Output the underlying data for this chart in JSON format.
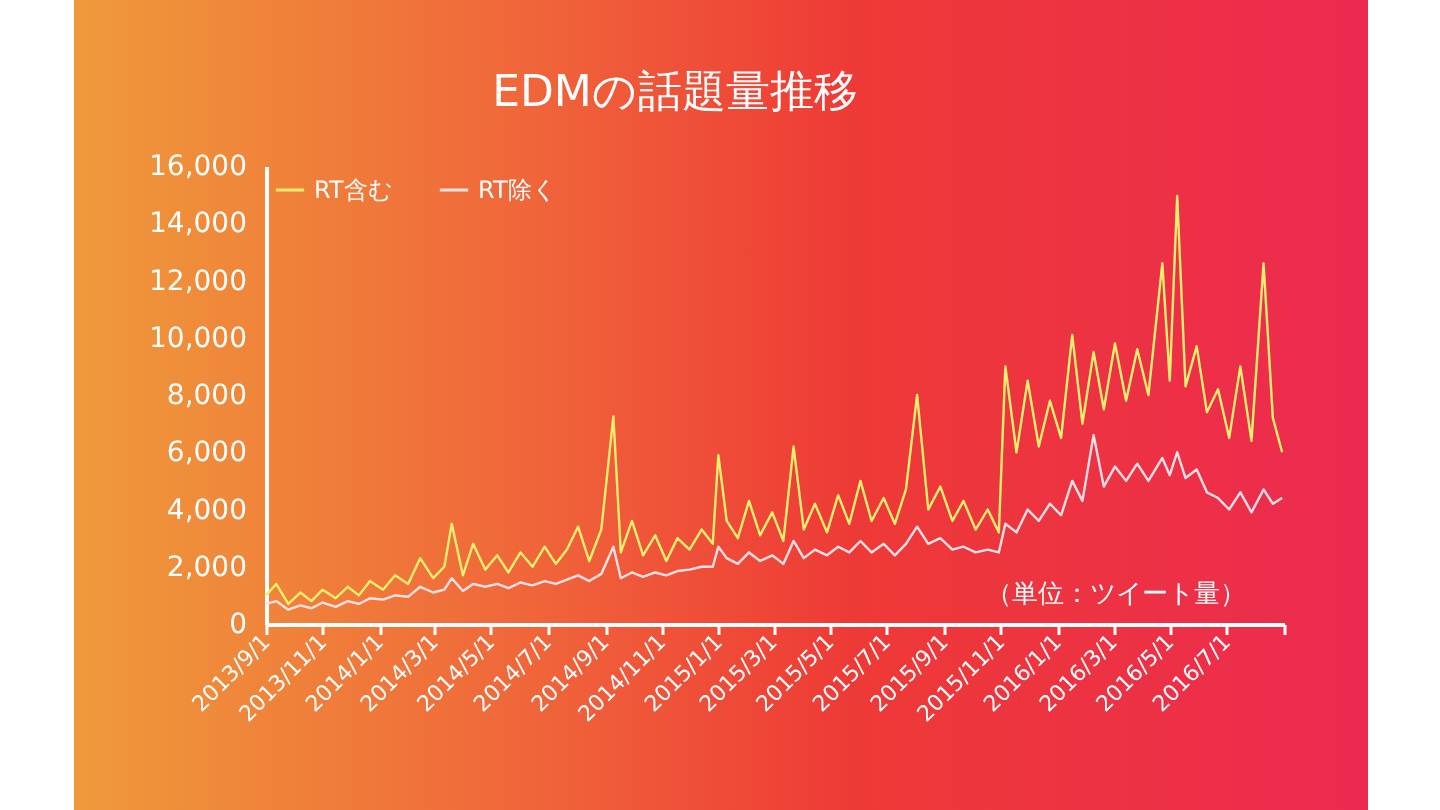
{
  "chart_data": {
    "type": "line",
    "title": "EDMの話題量推移",
    "annotations": [
      "（単位：ツイート量）"
    ],
    "x": [
      "2013-09-01",
      "2013-09-12",
      "2013-09-25",
      "2013-10-08",
      "2013-10-20",
      "2013-11-01",
      "2013-11-15",
      "2013-11-28",
      "2013-12-10",
      "2013-12-22",
      "2014-01-05",
      "2014-01-18",
      "2014-02-01",
      "2014-02-14",
      "2014-02-28",
      "2014-03-12",
      "2014-03-20",
      "2014-04-01",
      "2014-04-12",
      "2014-04-25",
      "2014-05-08",
      "2014-05-20",
      "2014-06-02",
      "2014-06-15",
      "2014-06-28",
      "2014-07-10",
      "2014-07-22",
      "2014-08-03",
      "2014-08-15",
      "2014-08-28",
      "2014-09-10",
      "2014-09-18",
      "2014-09-30",
      "2014-10-12",
      "2014-10-25",
      "2014-11-06",
      "2014-11-18",
      "2014-12-01",
      "2014-12-14",
      "2014-12-26",
      "2015-01-01",
      "2015-01-10",
      "2015-01-22",
      "2015-02-03",
      "2015-02-15",
      "2015-02-28",
      "2015-03-12",
      "2015-03-23",
      "2015-04-03",
      "2015-04-15",
      "2015-04-28",
      "2015-05-10",
      "2015-05-22",
      "2015-06-03",
      "2015-06-15",
      "2015-06-28",
      "2015-07-10",
      "2015-07-22",
      "2015-08-03",
      "2015-08-15",
      "2015-08-28",
      "2015-09-10",
      "2015-09-22",
      "2015-10-05",
      "2015-10-18",
      "2015-10-30",
      "2015-11-06",
      "2015-11-18",
      "2015-11-30",
      "2015-12-12",
      "2015-12-24",
      "2016-01-05",
      "2016-01-17",
      "2016-01-28",
      "2016-02-09",
      "2016-02-20",
      "2016-03-03",
      "2016-03-15",
      "2016-03-27",
      "2016-04-08",
      "2016-04-23",
      "2016-05-01",
      "2016-05-09",
      "2016-05-18",
      "2016-05-30",
      "2016-06-10",
      "2016-06-22",
      "2016-07-04",
      "2016-07-16",
      "2016-07-28",
      "2016-08-10",
      "2016-08-20",
      "2016-08-30"
    ],
    "series": [
      {
        "name": "RT含む",
        "color": "#f0ee6e",
        "values": [
          1000,
          1400,
          700,
          1100,
          800,
          1200,
          900,
          1300,
          1000,
          1500,
          1200,
          1700,
          1400,
          2300,
          1600,
          2000,
          3500,
          1700,
          2800,
          1900,
          2400,
          1800,
          2500,
          2000,
          2700,
          2100,
          2600,
          3400,
          2200,
          3300,
          7250,
          2500,
          3600,
          2400,
          3100,
          2200,
          3000,
          2600,
          3300,
          2800,
          5900,
          3600,
          3000,
          4300,
          3100,
          3900,
          2900,
          6200,
          3300,
          4200,
          3200,
          4500,
          3500,
          5000,
          3600,
          4400,
          3500,
          4700,
          8000,
          4000,
          4800,
          3600,
          4300,
          3300,
          4000,
          3200,
          9000,
          6000,
          8500,
          6200,
          7800,
          6500,
          10100,
          7000,
          9500,
          7500,
          9800,
          7800,
          9600,
          8000,
          12600,
          8500,
          14950,
          8300,
          9700,
          7400,
          8200,
          6500,
          9000,
          6400,
          12600,
          7200,
          6000
        ]
      },
      {
        "name": "RT除く",
        "color": "#fde0e6",
        "values": [
          700,
          800,
          500,
          650,
          550,
          750,
          600,
          800,
          700,
          900,
          850,
          1000,
          950,
          1300,
          1100,
          1200,
          1600,
          1150,
          1400,
          1300,
          1400,
          1250,
          1450,
          1350,
          1500,
          1400,
          1550,
          1700,
          1500,
          1750,
          2700,
          1600,
          1800,
          1650,
          1800,
          1700,
          1850,
          1900,
          2000,
          2000,
          2700,
          2300,
          2100,
          2500,
          2200,
          2400,
          2100,
          2900,
          2300,
          2600,
          2400,
          2700,
          2500,
          2900,
          2500,
          2800,
          2400,
          2800,
          3400,
          2800,
          3000,
          2600,
          2700,
          2500,
          2600,
          2500,
          3500,
          3200,
          4000,
          3600,
          4200,
          3800,
          5000,
          4300,
          6600,
          4800,
          5500,
          5000,
          5600,
          5000,
          5800,
          5200,
          6000,
          5100,
          5400,
          4600,
          4400,
          4000,
          4600,
          3900,
          4700,
          4200,
          4400
        ]
      }
    ],
    "xticks": [
      {
        "value": "2013-09-01",
        "label": "2013/9/1"
      },
      {
        "value": "2013-11-01",
        "label": "2013/11/1"
      },
      {
        "value": "2014-01-01",
        "label": "2014/1/1"
      },
      {
        "value": "2014-03-01",
        "label": "2014/3/1"
      },
      {
        "value": "2014-05-01",
        "label": "2014/5/1"
      },
      {
        "value": "2014-07-01",
        "label": "2014/7/1"
      },
      {
        "value": "2014-09-01",
        "label": "2014/9/1"
      },
      {
        "value": "2014-11-01",
        "label": "2014/11/1"
      },
      {
        "value": "2015-01-01",
        "label": "2015/1/1"
      },
      {
        "value": "2015-03-01",
        "label": "2015/3/1"
      },
      {
        "value": "2015-05-01",
        "label": "2015/5/1"
      },
      {
        "value": "2015-07-01",
        "label": "2015/7/1"
      },
      {
        "value": "2015-09-01",
        "label": "2015/9/1"
      },
      {
        "value": "2015-11-01",
        "label": "2015/11/1"
      },
      {
        "value": "2016-01-01",
        "label": "2016/1/1"
      },
      {
        "value": "2016-03-01",
        "label": "2016/3/1"
      },
      {
        "value": "2016-05-01",
        "label": "2016/5/1"
      },
      {
        "value": "2016-07-01",
        "label": "2016/7/1"
      },
      {
        "value": "2016-09-01",
        "label": null
      }
    ],
    "xlim": [
      "2013-09-01",
      "2016-09-01"
    ],
    "ylim": [
      0,
      16000
    ],
    "yticks": [
      {
        "value": 0,
        "label": "0"
      },
      {
        "value": 2000,
        "label": "2,000"
      },
      {
        "value": 4000,
        "label": "4,000"
      },
      {
        "value": 6000,
        "label": "6,000"
      },
      {
        "value": 8000,
        "label": "8,000"
      },
      {
        "value": 10000,
        "label": "10,000"
      },
      {
        "value": 12000,
        "label": "12,000"
      },
      {
        "value": 14000,
        "label": "14,000"
      },
      {
        "value": 16000,
        "label": "16,000"
      }
    ],
    "grid": false,
    "legend": "top left"
  }
}
